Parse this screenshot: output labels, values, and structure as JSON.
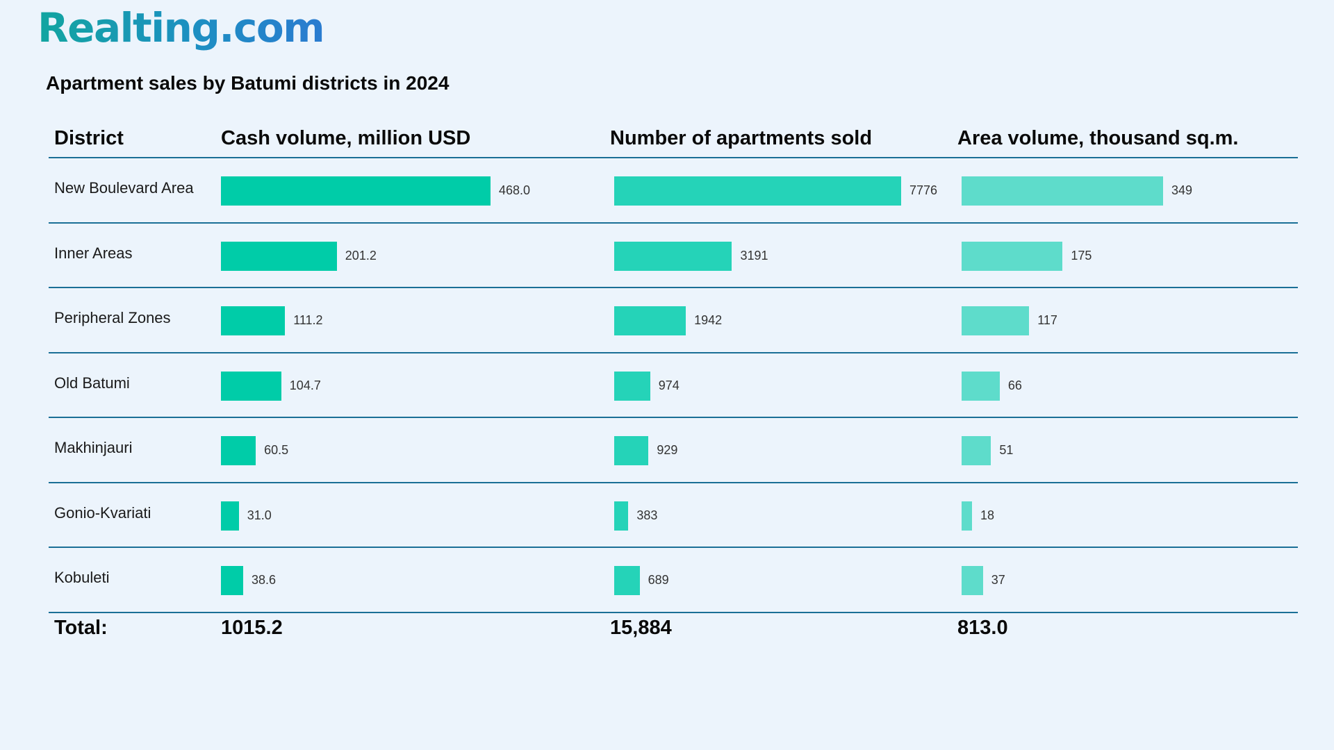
{
  "brand": "Realting.com",
  "chart_data": {
    "type": "table",
    "title": "Apartment sales by Batumi districts in 2024",
    "row_header": "District",
    "categories": [
      "New Boulevard Area",
      "Inner Areas",
      "Peripheral Zones",
      "Old Batumi",
      "Makhinjauri",
      "Gonio-Kvariati",
      "Kobuleti"
    ],
    "series": [
      {
        "name": "Cash volume, million USD",
        "values": [
          468.0,
          201.2,
          111.2,
          104.7,
          60.5,
          31.0,
          38.6
        ],
        "labels": [
          "468.0",
          "201.2",
          "111.2",
          "104.7",
          "60.5",
          "31.0",
          "38.6"
        ],
        "max": 468.0,
        "color": "#00cca8",
        "total": "1015.2"
      },
      {
        "name": "Number of apartments sold",
        "values": [
          7776,
          3191,
          1942,
          974,
          929,
          383,
          689
        ],
        "labels": [
          "7776",
          "3191",
          "1942",
          "974",
          "929",
          "383",
          "689"
        ],
        "max": 7776,
        "color": "#25d3b8",
        "total": "15,884"
      },
      {
        "name": "Area volume, thousand sq.m.",
        "values": [
          349,
          175,
          117,
          66,
          51,
          18,
          37
        ],
        "labels": [
          "349",
          "175",
          "117",
          "66",
          "51",
          "18",
          "37"
        ],
        "max": 349,
        "color": "#5edccb",
        "total": "813.0"
      }
    ],
    "total_label": "Total:"
  }
}
